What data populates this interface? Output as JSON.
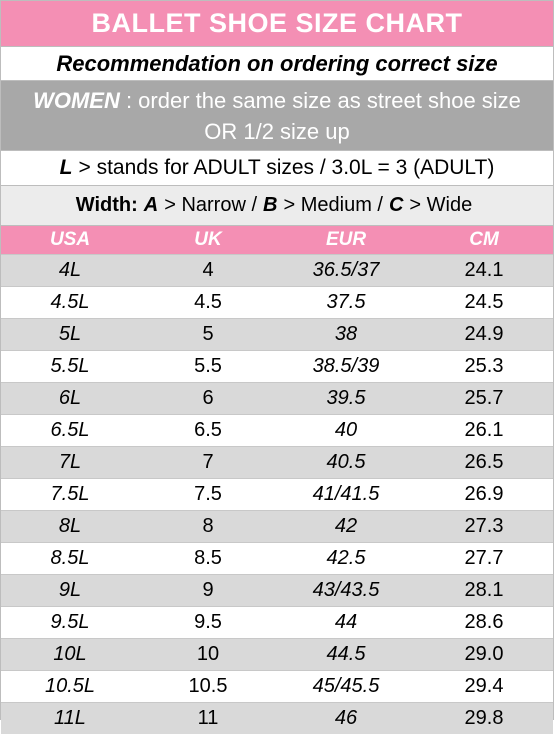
{
  "title": "BALLET SHOE SIZE CHART",
  "recommendation": "Recommendation on ordering correct size",
  "women_note": {
    "label": "WOMEN",
    "text": ": order the same size as street shoe size OR 1/2 size up"
  },
  "adult_note": {
    "label": "L",
    "text": "> stands for ADULT sizes / 3.0L = 3 (ADULT)"
  },
  "width_note": {
    "label": "Width:",
    "items": [
      {
        "code": "A",
        "desc": "> Narrow /"
      },
      {
        "code": "B",
        "desc": "> Medium /"
      },
      {
        "code": "C",
        "desc": "> Wide"
      }
    ]
  },
  "table": {
    "columns": [
      "USA",
      "UK",
      "EUR",
      "CM"
    ],
    "rows": [
      [
        "4L",
        "4",
        "36.5/37",
        "24.1"
      ],
      [
        "4.5L",
        "4.5",
        "37.5",
        "24.5"
      ],
      [
        "5L",
        "5",
        "38",
        "24.9"
      ],
      [
        "5.5L",
        "5.5",
        "38.5/39",
        "25.3"
      ],
      [
        "6L",
        "6",
        "39.5",
        "25.7"
      ],
      [
        "6.5L",
        "6.5",
        "40",
        "26.1"
      ],
      [
        "7L",
        "7",
        "40.5",
        "26.5"
      ],
      [
        "7.5L",
        "7.5",
        "41/41.5",
        "26.9"
      ],
      [
        "8L",
        "8",
        "42",
        "27.3"
      ],
      [
        "8.5L",
        "8.5",
        "42.5",
        "27.7"
      ],
      [
        "9L",
        "9",
        "43/43.5",
        "28.1"
      ],
      [
        "9.5L",
        "9.5",
        "44",
        "28.6"
      ],
      [
        "10L",
        "10",
        "44.5",
        "29.0"
      ],
      [
        "10.5L",
        "10.5",
        "45/45.5",
        "29.4"
      ],
      [
        "11L",
        "11",
        "46",
        "29.8"
      ]
    ]
  }
}
